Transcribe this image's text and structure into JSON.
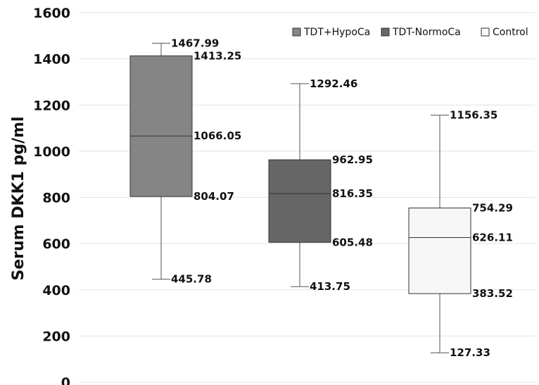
{
  "chart_data": {
    "type": "box",
    "ylabel": "Serum DKK1 pg/ml",
    "ylim": [
      0,
      1600
    ],
    "yticks": [
      0,
      200,
      400,
      600,
      800,
      1000,
      1200,
      1400,
      1600
    ],
    "grid": true,
    "legend_position": "top-right",
    "series": [
      {
        "name": "TDT+HypoCa",
        "color": "#858585",
        "min": 445.78,
        "q1": 804.07,
        "median": 1066.05,
        "q3": 1413.25,
        "max": 1467.99,
        "labels": {
          "min": "445.78",
          "q1": "804.07",
          "median": "1066.05",
          "q3": "1413.25",
          "max": "1467.99"
        }
      },
      {
        "name": "TDT-NormoCa",
        "color": "#666666",
        "min": 413.75,
        "q1": 605.48,
        "median": 816.35,
        "q3": 962.95,
        "max": 1292.46,
        "labels": {
          "min": "413.75",
          "q1": "605.48",
          "median": "816.35",
          "q3": "962.95",
          "max": "1292.46"
        }
      },
      {
        "name": "Control",
        "color": "#f7f7f7",
        "min": 127.33,
        "q1": 383.52,
        "median": 626.11,
        "q3": 754.29,
        "max": 1156.35,
        "labels": {
          "min": "127.33",
          "q1": "383.52",
          "median": "626.11",
          "q3": "754.29",
          "max": "1156.35"
        }
      }
    ]
  }
}
